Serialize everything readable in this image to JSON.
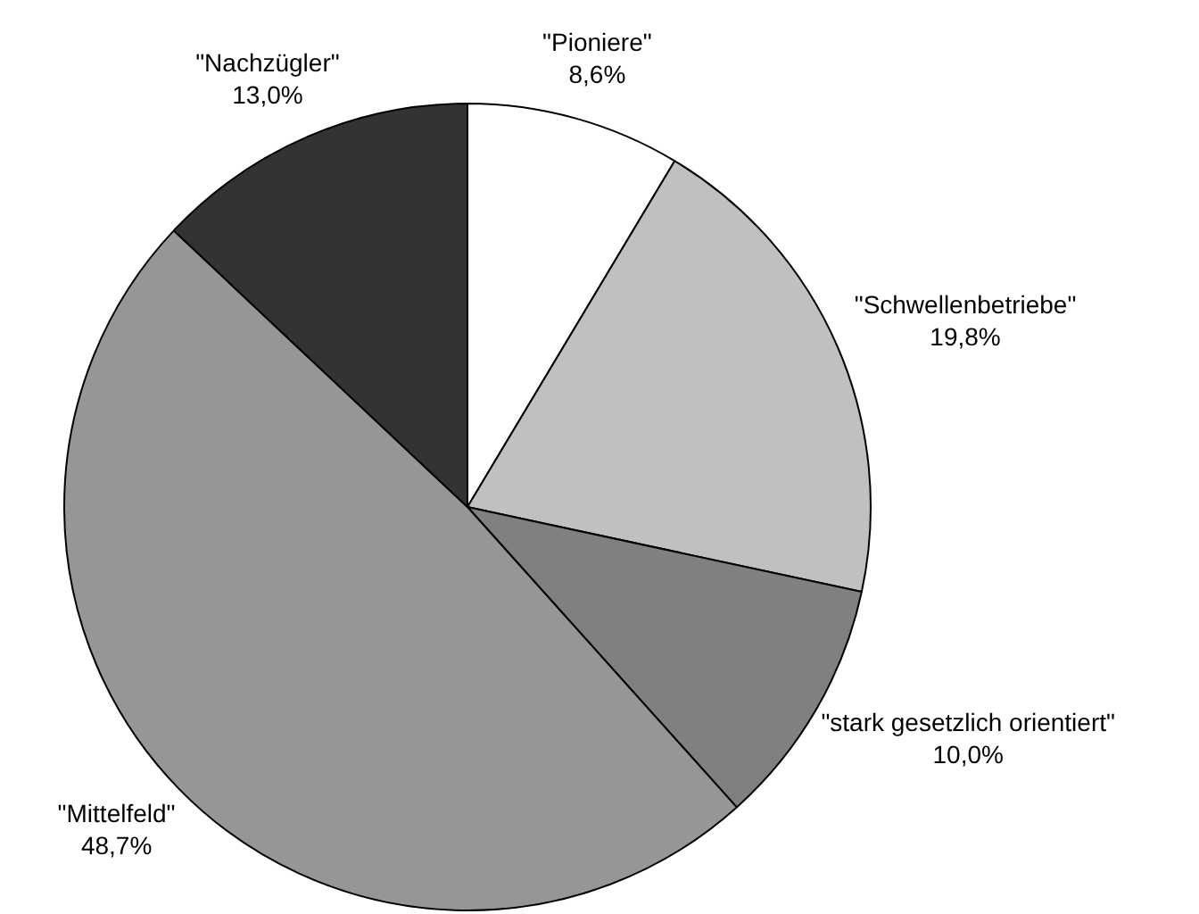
{
  "chart_data": {
    "type": "pie",
    "categories": [
      "\"Pioniere\"",
      "\"Schwellenbetriebe\"",
      "\"stark gesetzlich orientiert\"",
      "\"Mittelfeld\"",
      "\"Nachzügler\""
    ],
    "values": [
      8.6,
      19.8,
      10.0,
      48.7,
      13.0
    ],
    "value_labels": [
      "8,6%",
      "19,8%",
      "10,0%",
      "48,7%",
      "13,0%"
    ],
    "colors": [
      "#ffffff",
      "#c0c0c0",
      "#808080",
      "#969696",
      "#333333"
    ]
  }
}
